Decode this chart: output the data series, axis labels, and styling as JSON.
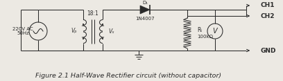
{
  "bg_color": "#ece9e3",
  "line_color": "#2a2a2a",
  "text_color": "#2a2a2a",
  "title": "Figure 2.1 Half-Wave Rectifier circuit (without capacitor)",
  "title_fontsize": 6.8,
  "labels": {
    "ac_source": "220V AC\n50Hz",
    "transformer_ratio": "18:1",
    "vp": "Vₚ",
    "vs": "Vₓ",
    "diode": "1N4007",
    "diode_label": "D₁",
    "rl": "Rₗ",
    "rl_val": "100kΩ",
    "ch1": "CH1",
    "ch2": "CH2",
    "gnd": "GND"
  },
  "figsize": [
    4.08,
    1.17
  ],
  "dpi": 100
}
